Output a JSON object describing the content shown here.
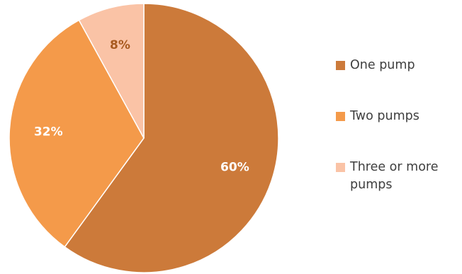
{
  "chart_data": {
    "type": "pie",
    "categories": [
      "One pump",
      "Two pumps",
      "Three or more pumps"
    ],
    "values": [
      60,
      32,
      8
    ],
    "labels": [
      "60%",
      "32%",
      "8%"
    ],
    "colors": [
      "#cc7a3a",
      "#f49a4a",
      "#fac3a6"
    ],
    "label_colors": [
      "#ffffff",
      "#ffffff",
      "#a85a1f"
    ],
    "start_angle_deg": 0,
    "direction": "clockwise",
    "legend_position": "right"
  }
}
